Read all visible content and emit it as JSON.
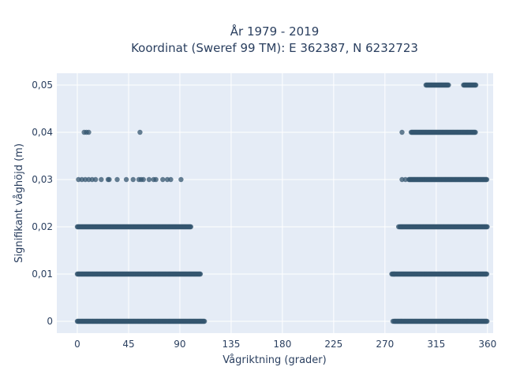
{
  "chart_data": {
    "type": "scatter",
    "title": "År 1979 - 2019",
    "subtitle": "Koordinat (Sweref 99 TM): E 362387, N 6232723",
    "xlabel": "Vågriktning (grader)",
    "ylabel": "Signifikant våghöjd (m)",
    "xlim": [
      -18,
      365
    ],
    "ylim": [
      -0.0025,
      0.0525
    ],
    "xticks": [
      0,
      45,
      90,
      135,
      180,
      225,
      270,
      315,
      360
    ],
    "xtick_labels": [
      "0",
      "45",
      "90",
      "135",
      "180",
      "225",
      "270",
      "315",
      "360"
    ],
    "yticks": [
      0,
      0.01,
      0.02,
      0.03,
      0.04,
      0.05
    ],
    "ytick_labels": [
      "0",
      "0,01",
      "0,02",
      "0,03",
      "0,04",
      "0,05"
    ],
    "grid": true,
    "colors": {
      "marker": "#34566f",
      "plot_bg": "#e5ecf6",
      "grid": "#ffffff",
      "text": "#2a3f5f"
    },
    "bands": [
      {
        "y": 0.0,
        "ranges": [
          [
            0,
            112
          ],
          [
            278,
            360
          ]
        ]
      },
      {
        "y": 0.01,
        "ranges": [
          [
            0,
            108
          ],
          [
            276,
            360
          ]
        ]
      },
      {
        "y": 0.02,
        "ranges": [
          [
            0,
            100
          ],
          [
            283,
            360
          ]
        ]
      },
      {
        "y": 0.03,
        "ranges": [
          [
            291,
            360
          ]
        ]
      },
      {
        "y": 0.04,
        "ranges": [
          [
            293,
            350
          ]
        ]
      },
      {
        "y": 0.05,
        "ranges": [
          [
            306,
            326
          ],
          [
            339,
            350
          ]
        ]
      }
    ],
    "points": [
      {
        "x": 6,
        "y": 0.04
      },
      {
        "x": 8,
        "y": 0.04
      },
      {
        "x": 10,
        "y": 0.04
      },
      {
        "x": 55,
        "y": 0.04
      },
      {
        "x": 285,
        "y": 0.04
      },
      {
        "x": 1,
        "y": 0.03
      },
      {
        "x": 4,
        "y": 0.03
      },
      {
        "x": 7,
        "y": 0.03
      },
      {
        "x": 10,
        "y": 0.03
      },
      {
        "x": 13,
        "y": 0.03
      },
      {
        "x": 16,
        "y": 0.03
      },
      {
        "x": 21,
        "y": 0.03
      },
      {
        "x": 27,
        "y": 0.03
      },
      {
        "x": 28,
        "y": 0.03
      },
      {
        "x": 35,
        "y": 0.03
      },
      {
        "x": 43,
        "y": 0.03
      },
      {
        "x": 49,
        "y": 0.03
      },
      {
        "x": 54,
        "y": 0.03
      },
      {
        "x": 56,
        "y": 0.03
      },
      {
        "x": 58,
        "y": 0.03
      },
      {
        "x": 63,
        "y": 0.03
      },
      {
        "x": 67,
        "y": 0.03
      },
      {
        "x": 69,
        "y": 0.03
      },
      {
        "x": 75,
        "y": 0.03
      },
      {
        "x": 79,
        "y": 0.03
      },
      {
        "x": 82,
        "y": 0.03
      },
      {
        "x": 91,
        "y": 0.03
      },
      {
        "x": 285,
        "y": 0.03
      },
      {
        "x": 288,
        "y": 0.03
      },
      {
        "x": 278,
        "y": 0.01
      },
      {
        "x": 282,
        "y": 0.02
      },
      {
        "x": 277,
        "y": 0.0
      }
    ]
  }
}
